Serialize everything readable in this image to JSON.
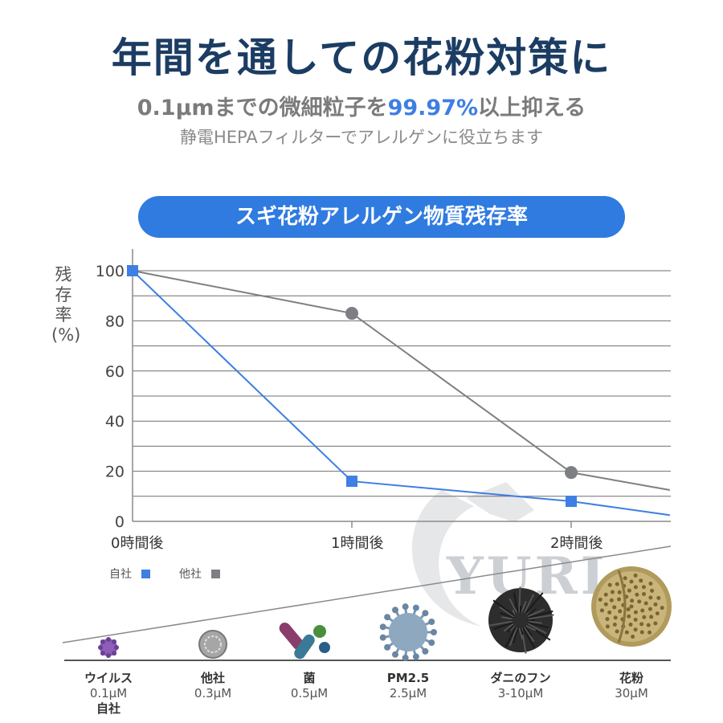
{
  "header": {
    "headline": "年間を通しての花粉対策に",
    "sub_pre": "0.1μmまでの微細粒子を",
    "sub_highlight": "99.97%",
    "sub_post": "以上抑える",
    "note": "静電HEPAフィルターでアレルゲンに役立ちます"
  },
  "banner": {
    "label": "スギ花粉アレルゲン物質残存率"
  },
  "colors": {
    "own": "#3d7fe3",
    "other": "#7d7f83",
    "banner": "#2f7be0",
    "headline": "#1c3d63"
  },
  "chart_data": {
    "type": "line",
    "title": "スギ花粉アレルゲン物質残存率",
    "ylabel": "残存率(%)",
    "xlabel": "",
    "categories": [
      "0時間後",
      "1時間後",
      "2時間後"
    ],
    "ylim": [
      0,
      100
    ],
    "yticks": [
      0,
      20,
      40,
      60,
      80,
      100
    ],
    "grid": true,
    "legend_position": "bottom-left",
    "series": [
      {
        "name": "自社",
        "marker": "square",
        "x": [
          0,
          1,
          2,
          2.45
        ],
        "values": [
          100,
          16,
          8,
          2.5
        ]
      },
      {
        "name": "他社",
        "marker": "circle",
        "x": [
          0,
          1,
          2,
          2.45
        ],
        "values": [
          100,
          83,
          19.5,
          12.5
        ]
      }
    ]
  },
  "particles": [
    {
      "name": "ウイルス",
      "size": "0.1μM",
      "badge": "自社",
      "icon": "virus-icon"
    },
    {
      "name": "他社",
      "size": "0.3μM",
      "badge": "",
      "icon": "particle-icon"
    },
    {
      "name": "菌",
      "size": "0.5μM",
      "badge": "",
      "icon": "bacteria-icon"
    },
    {
      "name": "PM2.5",
      "size": "2.5μM",
      "badge": "",
      "icon": "pm25-icon"
    },
    {
      "name": "ダニのフン",
      "size": "3-10μM",
      "badge": "",
      "icon": "mite-dropping-icon"
    },
    {
      "name": "花粉",
      "size": "30μM",
      "badge": "",
      "icon": "pollen-icon"
    }
  ],
  "watermark": {
    "text": "YURI"
  }
}
